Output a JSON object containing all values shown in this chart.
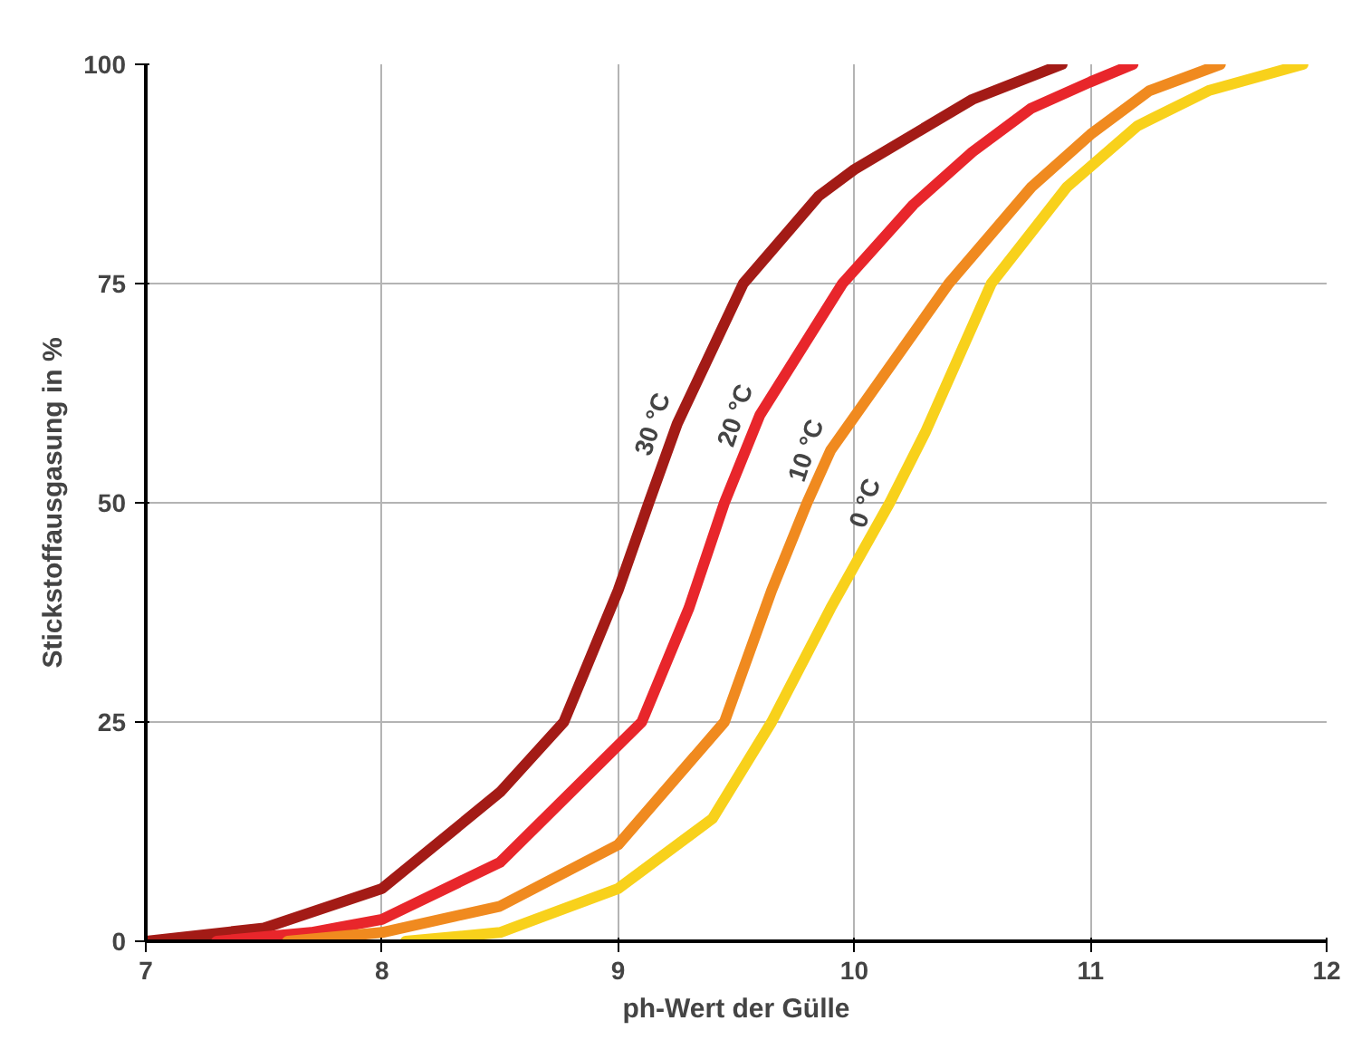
{
  "chart_data": {
    "type": "line",
    "xlabel": "ph-Wert der Gülle",
    "ylabel": "Stickstoffausgasung in %",
    "xlim": [
      7,
      12
    ],
    "ylim": [
      0,
      100
    ],
    "xticks": [
      7,
      8,
      9,
      10,
      11,
      12
    ],
    "yticks": [
      0,
      25,
      50,
      75,
      100
    ],
    "grid": true,
    "marker": "none",
    "line_style": "solid",
    "series": [
      {
        "color": "#a31b16",
        "x": [
          7.0,
          7.5,
          8.0,
          8.5,
          8.77,
          9.0,
          9.13,
          9.25,
          9.53,
          9.85,
          10.0,
          10.5,
          10.88
        ],
        "values": [
          0,
          1.5,
          6,
          17,
          25,
          40,
          50,
          59,
          75,
          85,
          88,
          96,
          100
        ]
      },
      {
        "color": "#e8262b",
        "x": [
          7.3,
          7.7,
          8.0,
          8.5,
          9.1,
          9.3,
          9.45,
          9.6,
          9.95,
          10.25,
          10.5,
          10.75,
          11.0,
          11.18
        ],
        "values": [
          0,
          1,
          2.5,
          9,
          25,
          38,
          50,
          60,
          75,
          84,
          90,
          95,
          98,
          100
        ]
      },
      {
        "color": "#f08a1f",
        "x": [
          7.6,
          8.0,
          8.5,
          9.0,
          9.45,
          9.65,
          9.8,
          9.9,
          10.4,
          10.75,
          11.0,
          11.25,
          11.55
        ],
        "values": [
          0,
          1,
          4,
          11,
          25,
          40,
          50,
          56,
          75,
          86,
          92,
          97,
          100
        ]
      },
      {
        "color": "#f8d11b",
        "x": [
          8.1,
          8.5,
          9.0,
          9.4,
          9.65,
          9.9,
          10.15,
          10.3,
          10.58,
          10.9,
          11.2,
          11.5,
          11.9
        ],
        "values": [
          0,
          1,
          6,
          14,
          25,
          38,
          50,
          58,
          75,
          86,
          93,
          97,
          100
        ]
      }
    ],
    "annotations": [
      {
        "text": "30 °C",
        "x": 9.25,
        "y": 59
      },
      {
        "text": "20 °C",
        "x": 9.6,
        "y": 60
      },
      {
        "text": "10 °C",
        "x": 9.9,
        "y": 56
      },
      {
        "text": "0 °C",
        "x": 10.15,
        "y": 50
      }
    ]
  }
}
